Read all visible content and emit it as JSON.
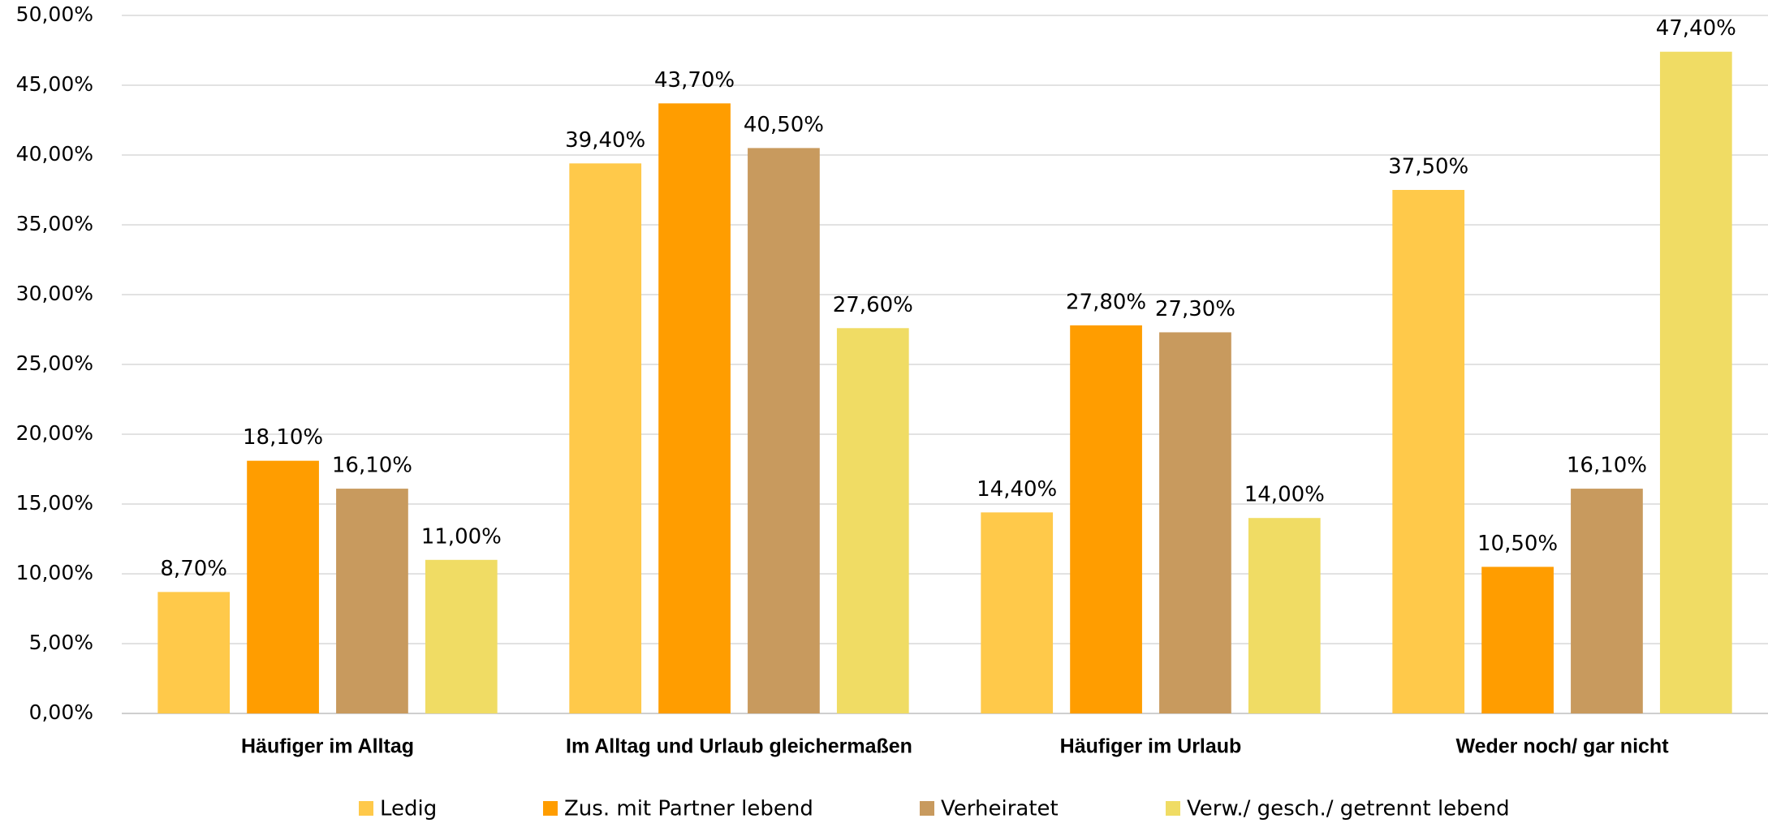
{
  "chart_data": {
    "type": "bar",
    "categories": [
      "Häufiger im Alltag",
      "Im Alltag und Urlaub gleichermaßen",
      "Häufiger im Urlaub",
      "Weder noch/ gar nicht"
    ],
    "series": [
      {
        "name": "Ledig",
        "color": "#FFC94A",
        "values": [
          8.7,
          39.4,
          14.4,
          37.5
        ],
        "value_labels": [
          "8,70%",
          "39,40%",
          "14,40%",
          "37,50%"
        ]
      },
      {
        "name": "Zus. mit Partner lebend",
        "color": "#FF9D00",
        "values": [
          18.1,
          43.7,
          27.8,
          10.5
        ],
        "value_labels": [
          "18,10%",
          "43,70%",
          "27,80%",
          "10,50%"
        ]
      },
      {
        "name": "Verheiratet",
        "color": "#C89A5E",
        "values": [
          16.1,
          40.5,
          27.3,
          16.1
        ],
        "value_labels": [
          "16,10%",
          "40,50%",
          "27,30%",
          "16,10%"
        ]
      },
      {
        "name": "Verw./ gesch./ getrennt lebend",
        "color": "#F0DC64",
        "values": [
          11.0,
          27.6,
          14.0,
          47.4
        ],
        "value_labels": [
          "11,00%",
          "27,60%",
          "14,00%",
          "47,40%"
        ]
      }
    ],
    "ylim": [
      0,
      50
    ],
    "yticks": [
      {
        "value": 0,
        "label": "0,00%"
      },
      {
        "value": 5,
        "label": "5,00%"
      },
      {
        "value": 10,
        "label": "10,00%"
      },
      {
        "value": 15,
        "label": "15,00%"
      },
      {
        "value": 20,
        "label": "20,00%"
      },
      {
        "value": 25,
        "label": "25,00%"
      },
      {
        "value": 30,
        "label": "30,00%"
      },
      {
        "value": 35,
        "label": "35,00%"
      },
      {
        "value": 40,
        "label": "40,00%"
      },
      {
        "value": 45,
        "label": "45,00%"
      },
      {
        "value": 50,
        "label": "50,00%"
      }
    ],
    "grid": true,
    "legend": "bottom"
  }
}
